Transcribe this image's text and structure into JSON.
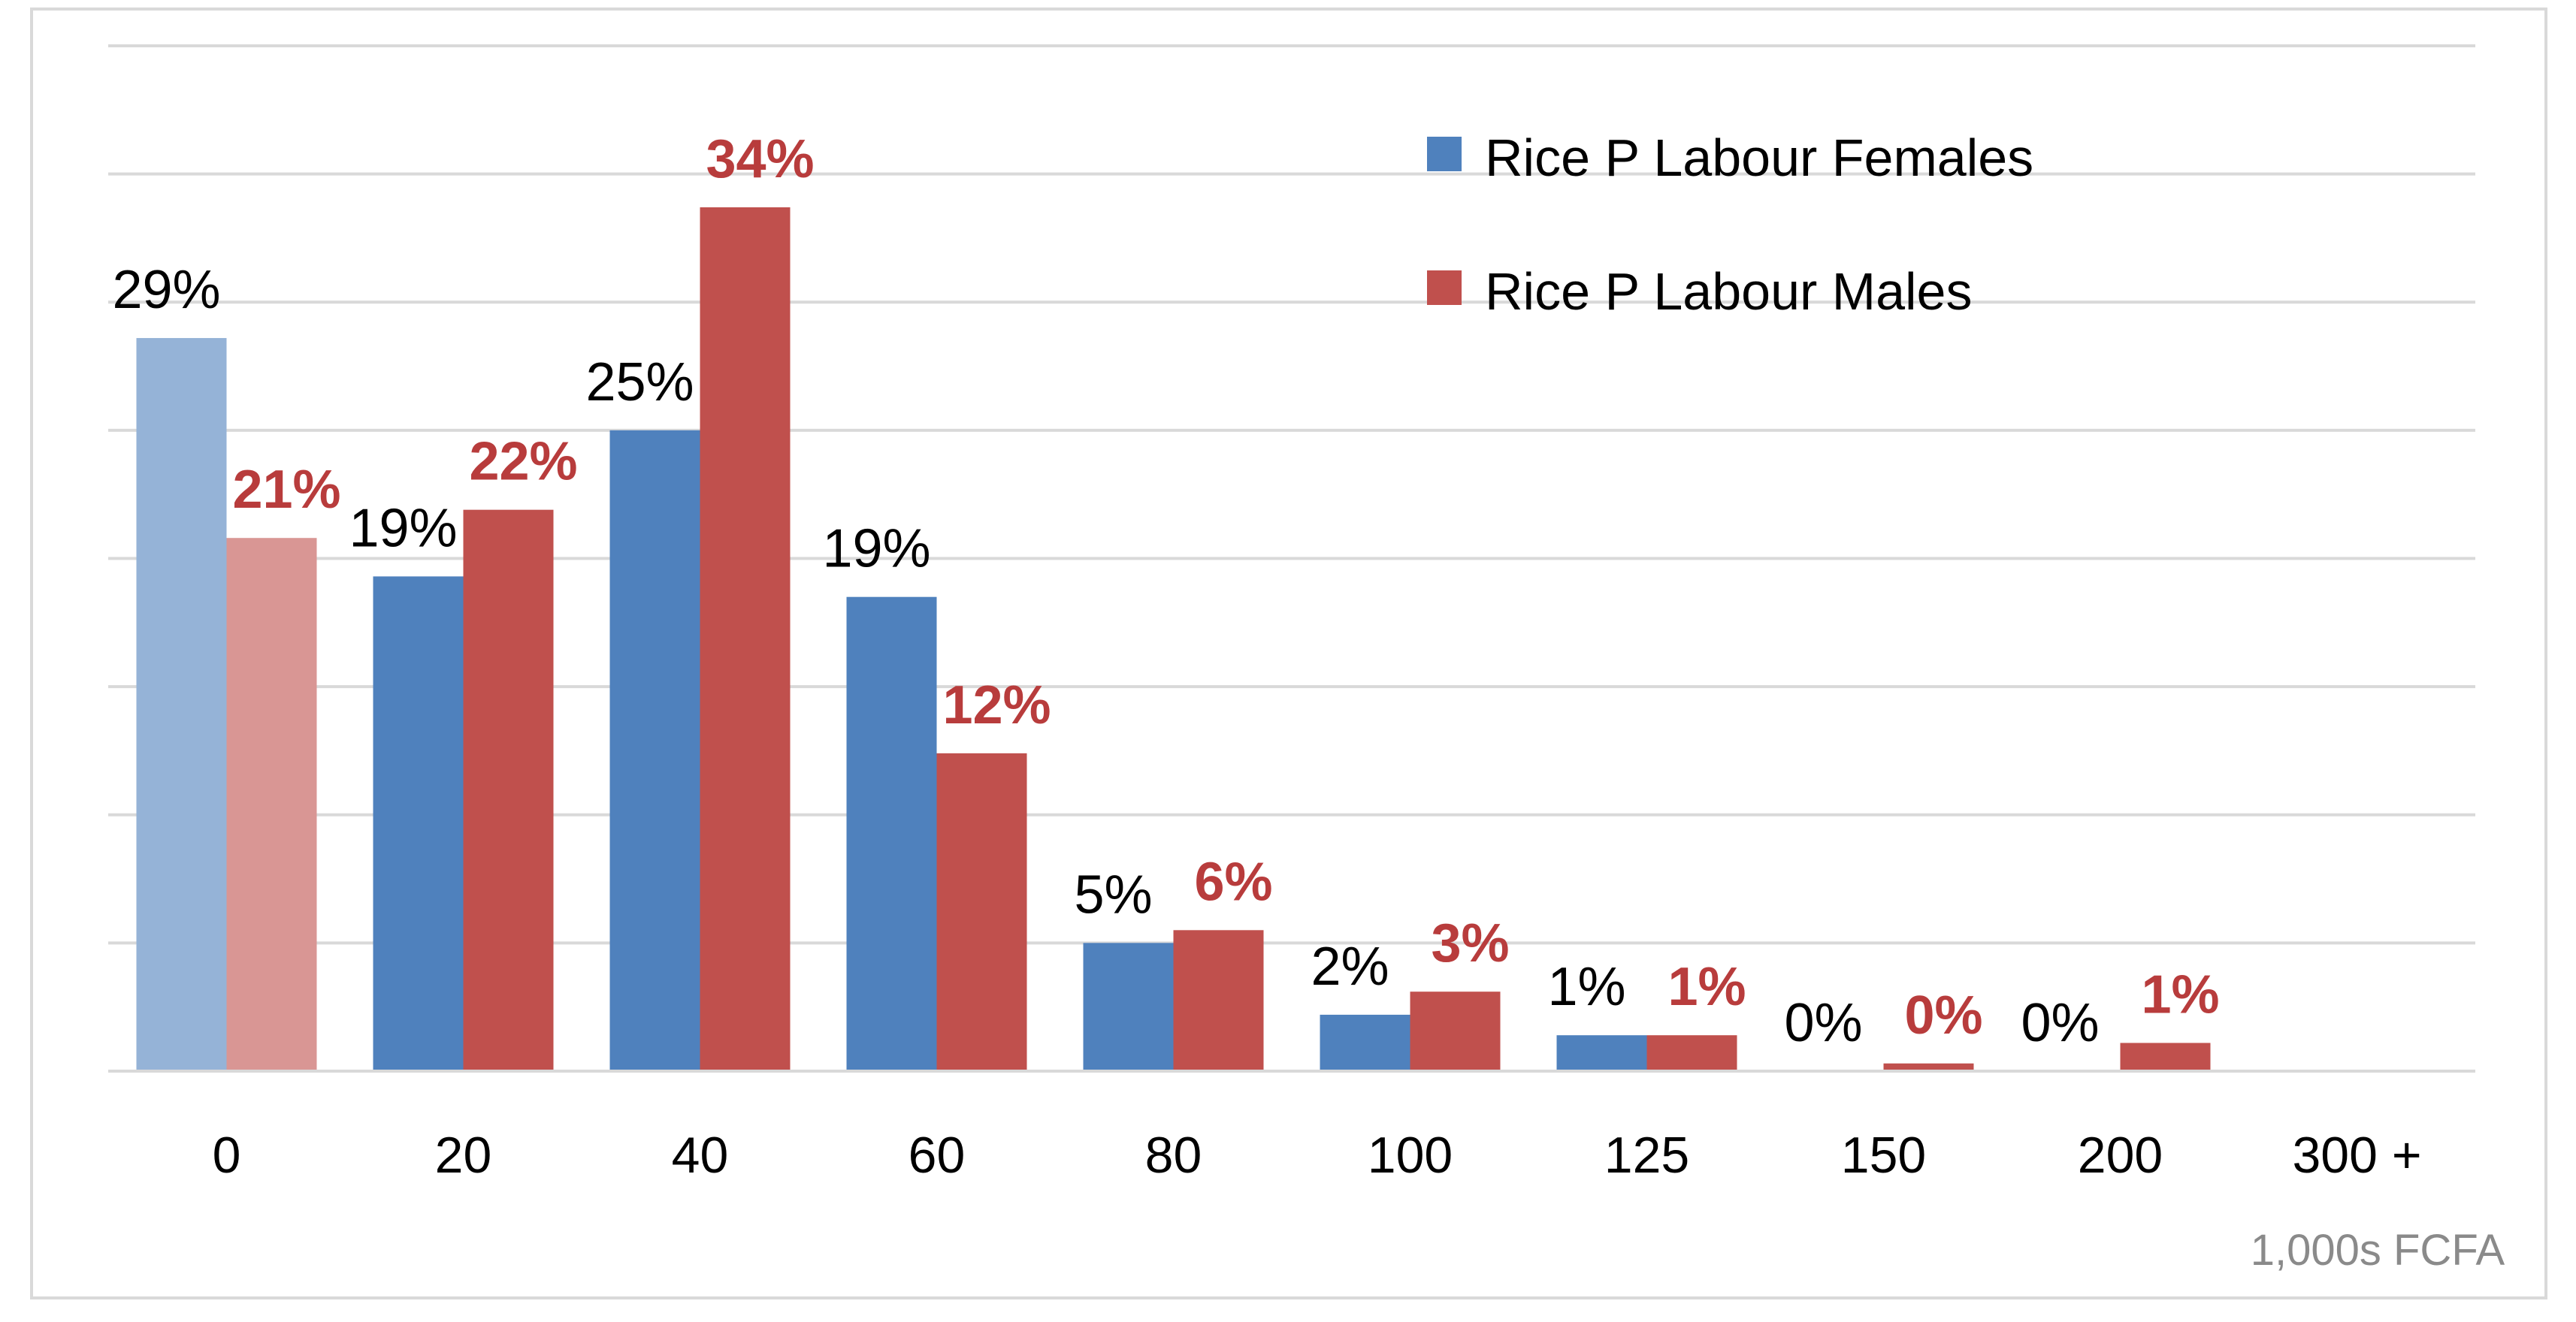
{
  "chart_data": {
    "type": "bar",
    "title": "",
    "xlabel": "1,000s FCFA",
    "ylabel": "",
    "categories": [
      "0",
      "20",
      "40",
      "60",
      "80",
      "100",
      "125",
      "150",
      "200",
      "300 +"
    ],
    "ylim": [
      0,
      40
    ],
    "grid": true,
    "legend_position": "top-right",
    "series": [
      {
        "name": "Rice P Labour Females",
        "color": "#4f81bd",
        "values": [
          28.6,
          19.3,
          25.0,
          18.5,
          5.0,
          2.2,
          1.4,
          0,
          0,
          0
        ],
        "labels": [
          "29%",
          "19%",
          "25%",
          "19%",
          "5%",
          "2%",
          "1%",
          "0%",
          "0%",
          null
        ]
      },
      {
        "name": "Rice P Labour Males",
        "color": "#c0504d",
        "values": [
          20.8,
          21.9,
          33.7,
          12.4,
          5.5,
          3.1,
          1.4,
          0.3,
          1.1,
          0
        ],
        "labels": [
          "21%",
          "22%",
          "34%",
          "12%",
          "6%",
          "3%",
          "1%",
          "0%",
          "1%",
          null
        ]
      }
    ],
    "highlight": {
      "category_index": 0,
      "faded_colors": [
        "#95b3d7",
        "#d99694"
      ]
    }
  }
}
